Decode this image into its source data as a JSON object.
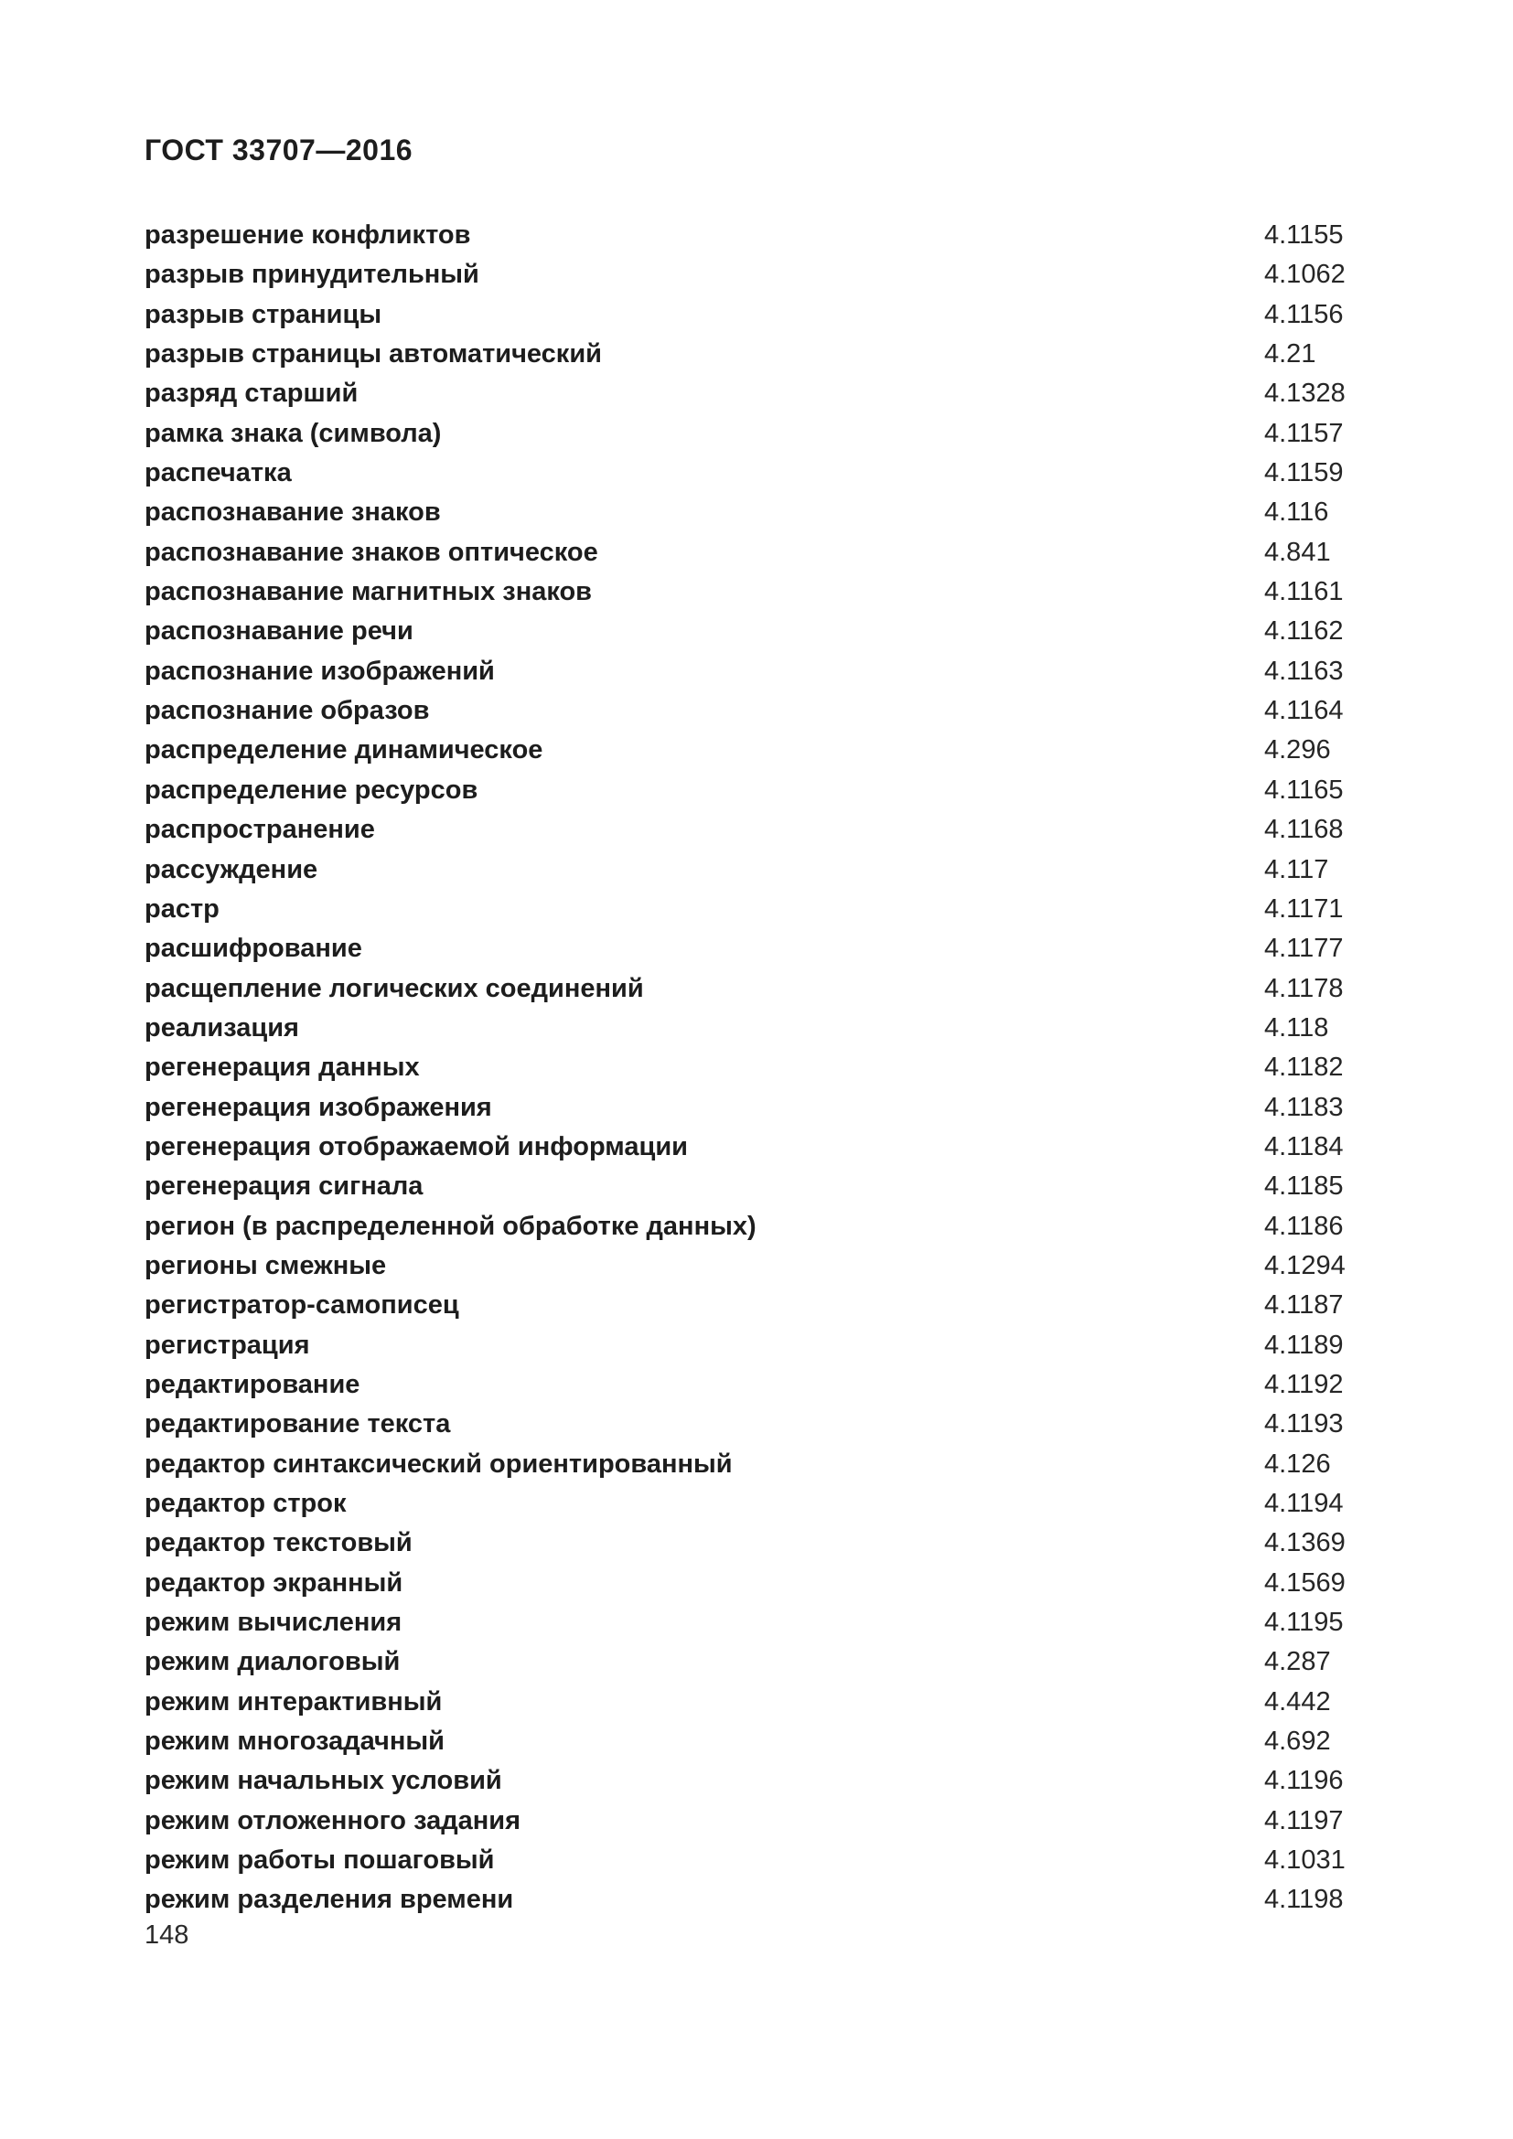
{
  "page": {
    "header_title": "ГОСТ 33707—2016",
    "page_number": "148"
  },
  "index": {
    "entries": [
      {
        "term": "разрешение конфликтов",
        "ref": "4.1155"
      },
      {
        "term": "разрыв принудительный",
        "ref": "4.1062"
      },
      {
        "term": "разрыв страницы",
        "ref": "4.1156"
      },
      {
        "term": "разрыв страницы автоматический",
        "ref": "4.21"
      },
      {
        "term": "разряд старший",
        "ref": "4.1328"
      },
      {
        "term": "рамка знака (символа)",
        "ref": "4.1157"
      },
      {
        "term": "распечатка",
        "ref": "4.1159"
      },
      {
        "term": "распознавание знаков",
        "ref": "4.116"
      },
      {
        "term": "распознавание знаков оптическое",
        "ref": "4.841"
      },
      {
        "term": "распознавание магнитных знаков",
        "ref": "4.1161"
      },
      {
        "term": "распознавание речи",
        "ref": "4.1162"
      },
      {
        "term": "распознание изображений",
        "ref": "4.1163"
      },
      {
        "term": "распознание образов",
        "ref": "4.1164"
      },
      {
        "term": "распределение динамическое",
        "ref": "4.296"
      },
      {
        "term": "распределение ресурсов",
        "ref": "4.1165"
      },
      {
        "term": "распространение",
        "ref": "4.1168"
      },
      {
        "term": "рассуждение",
        "ref": "4.117"
      },
      {
        "term": "растр",
        "ref": "4.1171"
      },
      {
        "term": "расшифрование",
        "ref": "4.1177"
      },
      {
        "term": "расщепление логических соединений",
        "ref": "4.1178"
      },
      {
        "term": "реализация",
        "ref": "4.118"
      },
      {
        "term": "регенерация данных",
        "ref": "4.1182"
      },
      {
        "term": "регенерация изображения",
        "ref": "4.1183"
      },
      {
        "term": "регенерация отображаемой информации",
        "ref": "4.1184"
      },
      {
        "term": "регенерация сигнала",
        "ref": "4.1185"
      },
      {
        "term": "регион (в распределенной обработке данных)",
        "ref": "4.1186"
      },
      {
        "term": "регионы смежные",
        "ref": "4.1294"
      },
      {
        "term": "регистратор-самописец",
        "ref": "4.1187"
      },
      {
        "term": "регистрация",
        "ref": "4.1189"
      },
      {
        "term": "редактирование",
        "ref": "4.1192"
      },
      {
        "term": "редактирование текста",
        "ref": "4.1193"
      },
      {
        "term": "редактор синтаксический ориентированный",
        "ref": "4.126"
      },
      {
        "term": "редактор строк",
        "ref": "4.1194"
      },
      {
        "term": "редактор текстовый",
        "ref": "4.1369"
      },
      {
        "term": "редактор экранный",
        "ref": "4.1569"
      },
      {
        "term": "режим вычисления",
        "ref": "4.1195"
      },
      {
        "term": "режим диалоговый",
        "ref": "4.287"
      },
      {
        "term": "режим интерактивный",
        "ref": "4.442"
      },
      {
        "term": "режим многозадачный",
        "ref": "4.692"
      },
      {
        "term": "режим начальных условий",
        "ref": "4.1196"
      },
      {
        "term": "режим отложенного задания",
        "ref": "4.1197"
      },
      {
        "term": "режим работы пошаговый",
        "ref": "4.1031"
      },
      {
        "term": "режим разделения времени",
        "ref": "4.1198"
      }
    ]
  }
}
